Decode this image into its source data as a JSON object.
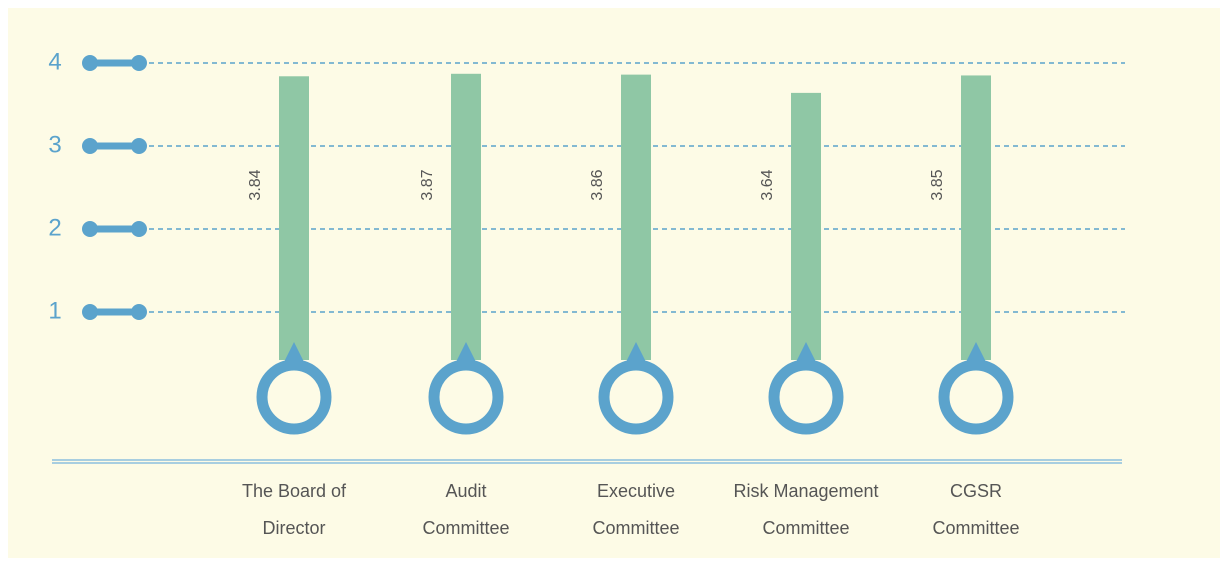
{
  "chart_data": {
    "type": "bar",
    "categories": [
      [
        "The Board of",
        "Director"
      ],
      [
        "Audit",
        "Committee"
      ],
      [
        "Executive",
        "Committee"
      ],
      [
        "Risk Management",
        "Committee"
      ],
      [
        "CGSR",
        "Committee"
      ]
    ],
    "values": [
      3.84,
      3.87,
      3.86,
      3.64,
      3.85
    ],
    "color": "#8fc7a5",
    "accent": "#5ba3cc",
    "ylim": [
      0,
      4
    ],
    "yticks": [
      1,
      2,
      3,
      4
    ],
    "grid": true
  }
}
